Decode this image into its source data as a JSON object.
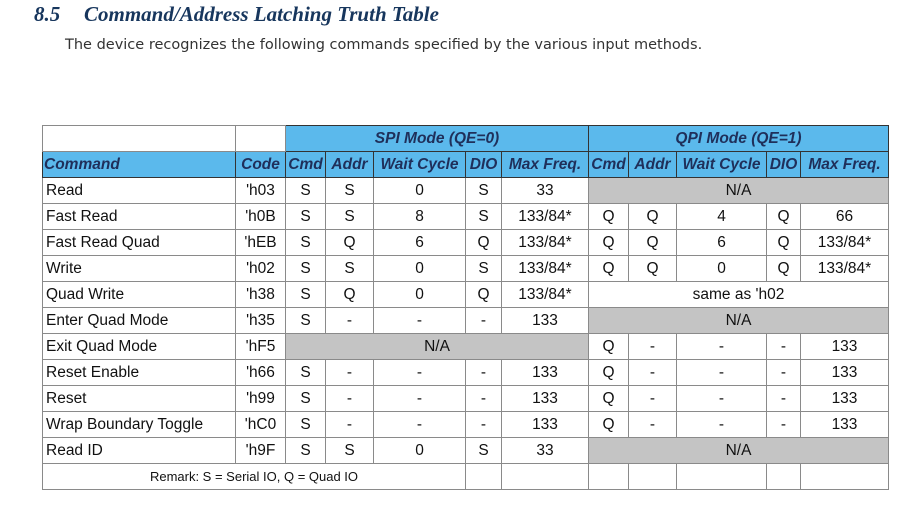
{
  "header": {
    "number": "8.5",
    "title": "Command/Address Latching Truth Table",
    "intro": "The device recognizes the following commands specified by the various input methods."
  },
  "table": {
    "groups": [
      "SPI Mode (QE=0)",
      "QPI Mode (QE=1)"
    ],
    "columns": [
      "Command",
      "Code",
      "Cmd",
      "Addr",
      "Wait Cycle",
      "DIO",
      "Max Freq.",
      "Cmd",
      "Addr",
      "Wait Cycle",
      "DIO",
      "Max Freq."
    ],
    "rows": [
      {
        "command": "Read",
        "code": "'h03",
        "spi": [
          "S",
          "S",
          "0",
          "S",
          "33"
        ],
        "qpi": "N/A"
      },
      {
        "command": "Fast Read",
        "code": "'h0B",
        "spi": [
          "S",
          "S",
          "8",
          "S",
          "133/84*"
        ],
        "qpi": [
          "Q",
          "Q",
          "4",
          "Q",
          "66"
        ]
      },
      {
        "command": "Fast Read Quad",
        "code": "'hEB",
        "spi": [
          "S",
          "Q",
          "6",
          "Q",
          "133/84*"
        ],
        "qpi": [
          "Q",
          "Q",
          "6",
          "Q",
          "133/84*"
        ]
      },
      {
        "command": "Write",
        "code": "'h02",
        "spi": [
          "S",
          "S",
          "0",
          "S",
          "133/84*"
        ],
        "qpi": [
          "Q",
          "Q",
          "0",
          "Q",
          "133/84*"
        ]
      },
      {
        "command": "Quad Write",
        "code": "'h38",
        "spi": [
          "S",
          "Q",
          "0",
          "Q",
          "133/84*"
        ],
        "qpi": "same as 'h02"
      },
      {
        "command": "Enter Quad Mode",
        "code": "'h35",
        "spi": [
          "S",
          "-",
          "-",
          "-",
          "133"
        ],
        "qpi": "N/A"
      },
      {
        "command": "Exit Quad Mode",
        "code": "'hF5",
        "spi": "N/A",
        "qpi": [
          "Q",
          "-",
          "-",
          "-",
          "133"
        ]
      },
      {
        "command": "Reset Enable",
        "code": "'h66",
        "spi": [
          "S",
          "-",
          "-",
          "-",
          "133"
        ],
        "qpi": [
          "Q",
          "-",
          "-",
          "-",
          "133"
        ]
      },
      {
        "command": "Reset",
        "code": "'h99",
        "spi": [
          "S",
          "-",
          "-",
          "-",
          "133"
        ],
        "qpi": [
          "Q",
          "-",
          "-",
          "-",
          "133"
        ]
      },
      {
        "command": "Wrap Boundary Toggle",
        "code": "'hC0",
        "spi": [
          "S",
          "-",
          "-",
          "-",
          "133"
        ],
        "qpi": [
          "Q",
          "-",
          "-",
          "-",
          "133"
        ]
      },
      {
        "command": "Read ID",
        "code": "'h9F",
        "spi": [
          "S",
          "S",
          "0",
          "S",
          "33"
        ],
        "qpi": "N/A"
      }
    ],
    "remark": "Remark: S = Serial IO, Q = Quad IO"
  }
}
